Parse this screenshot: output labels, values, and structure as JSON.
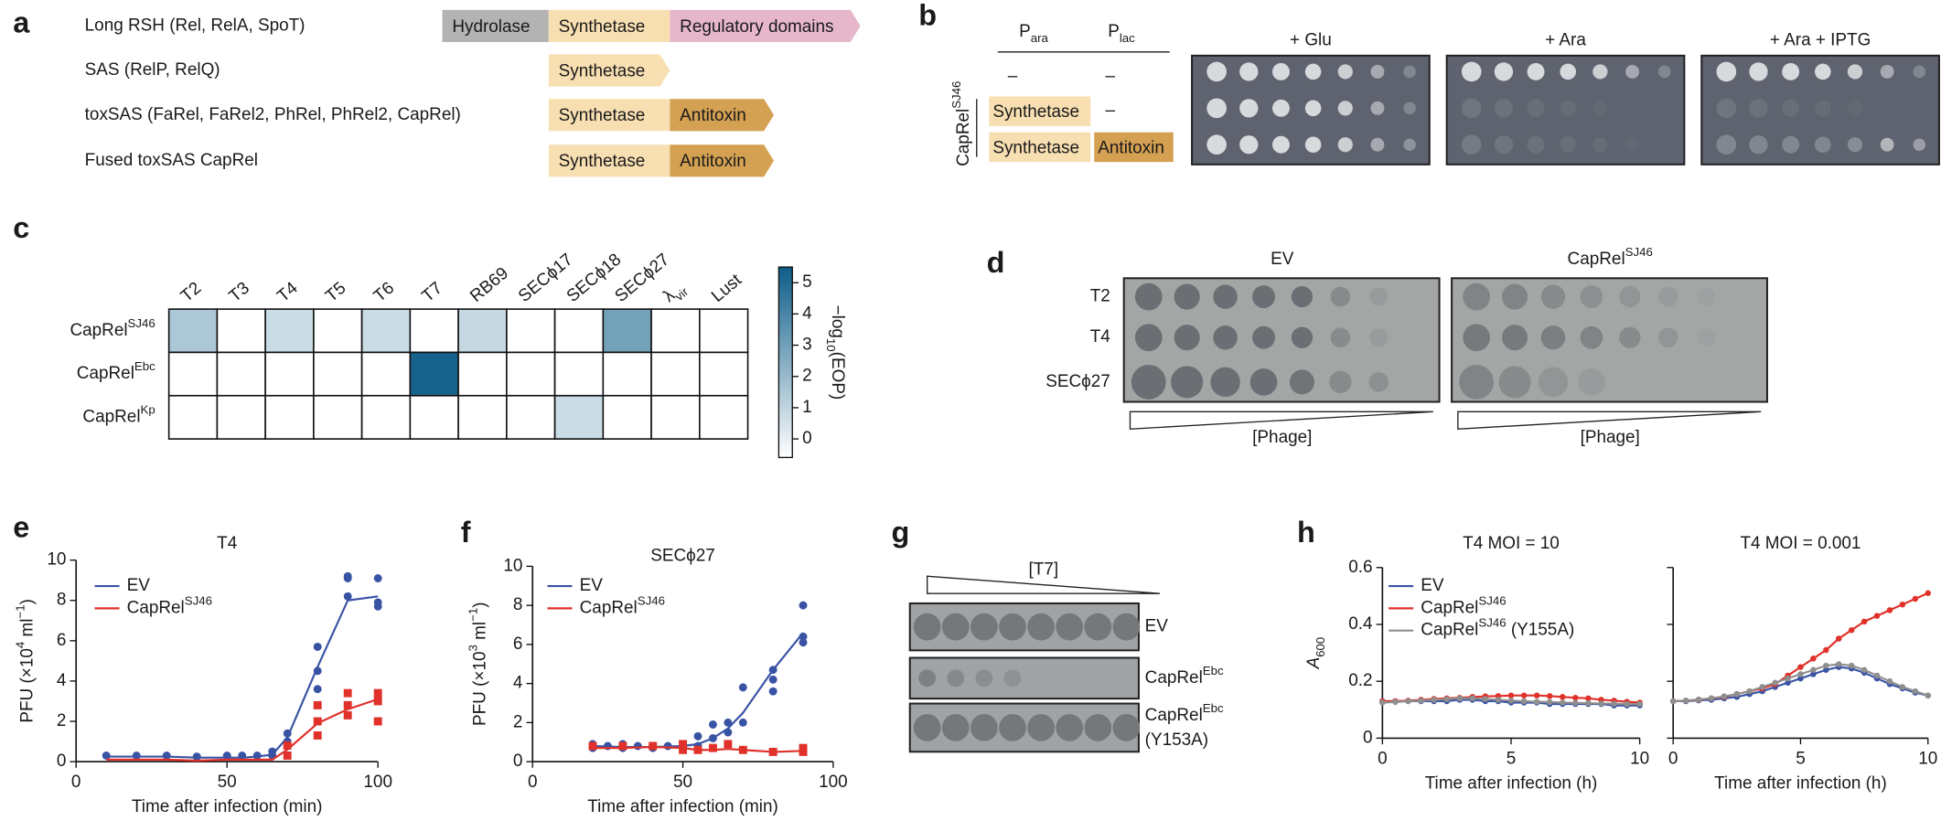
{
  "panel_labels": [
    "a",
    "b",
    "c",
    "d",
    "e",
    "f",
    "g",
    "h"
  ],
  "panel_a": {
    "rows": [
      {
        "label": "Long RSH (Rel, RelA, SpoT)",
        "domains": [
          {
            "text": "Hydrolase",
            "color": "#b3b3b3"
          },
          {
            "text": "Synthetase",
            "color": "#f8dfb2"
          },
          {
            "text": "Regulatory domains",
            "color": "#e6b6cb"
          }
        ]
      },
      {
        "label": "SAS (RelP, RelQ)",
        "domains": [
          {
            "text": "Synthetase",
            "color": "#f8dfb2"
          }
        ]
      },
      {
        "label": "toxSAS (FaRel, FaRel2, PhRel, PhRel2, CapRel)",
        "domains": [
          {
            "text": "Synthetase",
            "color": "#f8dfb2"
          },
          {
            "text": "Antitoxin",
            "color": "#d4a052"
          }
        ]
      },
      {
        "label": "Fused toxSAS CapRel",
        "domains": [
          {
            "text": "Synthetase",
            "color": "#f8dfb2"
          },
          {
            "text": "Antitoxin",
            "color": "#d4a052"
          }
        ]
      }
    ]
  },
  "panel_b": {
    "headers": [
      [
        {
          "text": "P"
        },
        {
          "text": "ara",
          "pos": "sub"
        }
      ],
      [
        {
          "text": "P"
        },
        {
          "text": "lac",
          "pos": "sub"
        }
      ]
    ],
    "strain": [
      {
        "text": "CapRel"
      },
      {
        "text": "SJ46",
        "pos": "sup"
      }
    ],
    "rows": [
      [
        "–",
        "–"
      ],
      [
        {
          "text": "Synthetase",
          "color": "#f8dfb2"
        },
        "–"
      ],
      [
        {
          "text": "Synthetase",
          "color": "#f8dfb2"
        },
        {
          "text": "Antitoxin",
          "color": "#d4a052"
        }
      ]
    ],
    "plates": [
      "+ Glu",
      "+ Ara",
      "+ Ara + IPTG"
    ]
  },
  "panel_d": {
    "plates": [
      "EV",
      [
        {
          "text": "CapRel"
        },
        {
          "text": "SJ46",
          "pos": "sup"
        }
      ]
    ],
    "rows": [
      "T2",
      "T4",
      "SECϕ27"
    ],
    "gradient_label": "[Phage]"
  },
  "panel_g": {
    "gradient_label": "[T7]",
    "rows": [
      [
        "EV"
      ],
      [
        [
          {
            "text": "CapRel"
          },
          {
            "text": "Ebc",
            "pos": "sup"
          }
        ]
      ],
      [
        [
          {
            "text": "CapRel"
          },
          {
            "text": "Ebc",
            "pos": "sup"
          }
        ],
        "(Y153A)"
      ]
    ]
  },
  "chart_data": [
    {
      "type": "heatmap",
      "x_categories": [
        "T2",
        "T3",
        "T4",
        "T5",
        "T6",
        "T7",
        "RB69",
        "SECϕ17",
        "SECϕ18",
        "SECϕ27",
        [
          {
            "text": "λ"
          },
          {
            "text": "vir",
            "pos": "sub"
          }
        ],
        "Lust"
      ],
      "y_categories": [
        [
          {
            "text": "CapRel"
          },
          {
            "text": "SJ46",
            "pos": "sup"
          }
        ],
        [
          {
            "text": "CapRel"
          },
          {
            "text": "Ebc",
            "pos": "sup"
          }
        ],
        [
          {
            "text": "CapRel"
          },
          {
            "text": "Kp",
            "pos": "sup"
          }
        ]
      ],
      "values": [
        [
          1.9,
          0,
          1.2,
          0,
          1.2,
          0,
          1.3,
          0,
          0,
          3.2,
          0,
          0
        ],
        [
          0,
          0,
          0,
          0,
          0,
          5.3,
          0,
          0,
          0,
          0,
          0,
          0
        ],
        [
          0,
          0,
          0,
          0,
          0,
          0,
          0,
          0,
          1.2,
          0,
          0,
          0
        ]
      ],
      "colormap": [
        "#ffffff",
        "#0e5d89"
      ],
      "clim": [
        0,
        5.5
      ],
      "colorbar_ticks": [
        0,
        1,
        2,
        3,
        4,
        5
      ],
      "colorbar_label": [
        {
          "text": "−log"
        },
        {
          "text": "10",
          "pos": "sub"
        },
        {
          "text": "(EOP)"
        }
      ]
    },
    {
      "type": "line",
      "title": "T4",
      "xlabel": "Time after infection (min)",
      "ylabel": [
        {
          "text": "PFU (×10"
        },
        {
          "text": "4",
          "pos": "sup"
        },
        {
          "text": " ml"
        },
        {
          "text": "−1",
          "pos": "sup"
        },
        {
          "text": ")"
        }
      ],
      "xlim": [
        0,
        100
      ],
      "ylim": [
        0,
        10
      ],
      "xticks": [
        0,
        50,
        100
      ],
      "yticks": [
        0,
        2,
        4,
        6,
        8,
        10
      ],
      "legend": true,
      "show_ytick_labels": true,
      "series": [
        {
          "name": "EV",
          "color": "#3953a4",
          "marker": "circle",
          "x": [
            10,
            20,
            30,
            40,
            50,
            55,
            60,
            65,
            70,
            80,
            90,
            100
          ],
          "values": [
            0.25,
            0.25,
            0.25,
            0.2,
            0.2,
            0.2,
            0.25,
            0.35,
            1.2,
            4.7,
            8.0,
            8.2
          ],
          "points": {
            "x": [
              10,
              20,
              30,
              40,
              50,
              55,
              60,
              65,
              65,
              70,
              70,
              80,
              80,
              80,
              90,
              90,
              90,
              100,
              100,
              100
            ],
            "y": [
              0.3,
              0.3,
              0.3,
              0.25,
              0.3,
              0.3,
              0.3,
              0.3,
              0.5,
              1.0,
              1.4,
              5.7,
              4.5,
              3.6,
              9.2,
              8.2,
              9.1,
              9.1,
              7.9,
              7.7
            ]
          }
        },
        {
          "name": [
            {
              "text": "CapRel"
            },
            {
              "text": "SJ46",
              "pos": "sup"
            }
          ],
          "color": "#e0312a",
          "marker": "square",
          "x": [
            10,
            20,
            30,
            40,
            50,
            60,
            65,
            70,
            80,
            90,
            100
          ],
          "values": [
            0.1,
            0.1,
            0.1,
            0.05,
            0.1,
            0.1,
            0.1,
            0.6,
            1.9,
            2.6,
            3.1
          ],
          "points": {
            "x": [
              70,
              70,
              80,
              80,
              80,
              90,
              90,
              90,
              100,
              100,
              100
            ],
            "y": [
              0.3,
              0.8,
              2.8,
              2.0,
              1.3,
              3.4,
              2.8,
              2.3,
              3.4,
              3.0,
              2.0
            ]
          }
        }
      ]
    },
    {
      "type": "line",
      "title": "SECϕ27",
      "xlabel": "Time after infection (min)",
      "ylabel": [
        {
          "text": "PFU (×10"
        },
        {
          "text": "3",
          "pos": "sup"
        },
        {
          "text": " ml"
        },
        {
          "text": "−1",
          "pos": "sup"
        },
        {
          "text": ")"
        }
      ],
      "xlim": [
        0,
        100
      ],
      "ylim": [
        0,
        10
      ],
      "xticks": [
        0,
        50,
        100
      ],
      "yticks": [
        0,
        2,
        4,
        6,
        8,
        10
      ],
      "legend": true,
      "show_ytick_labels": true,
      "series": [
        {
          "name": "EV",
          "color": "#3953a4",
          "marker": "circle",
          "x": [
            20,
            30,
            40,
            50,
            55,
            60,
            65,
            70,
            80,
            90
          ],
          "values": [
            0.8,
            0.75,
            0.75,
            0.8,
            0.9,
            1.2,
            1.7,
            2.5,
            4.7,
            6.6
          ],
          "points": {
            "x": [
              20,
              20,
              25,
              30,
              30,
              35,
              40,
              40,
              45,
              50,
              50,
              55,
              55,
              60,
              60,
              65,
              65,
              70,
              70,
              80,
              80,
              80,
              90,
              90,
              90
            ],
            "y": [
              0.9,
              0.7,
              0.8,
              0.9,
              0.7,
              0.8,
              0.8,
              0.7,
              0.8,
              0.9,
              0.7,
              1.3,
              0.8,
              1.9,
              1.2,
              2.0,
              1.5,
              3.8,
              2.0,
              4.7,
              4.2,
              3.6,
              8.0,
              6.4,
              6.1
            ]
          }
        },
        {
          "name": [
            {
              "text": "CapRel"
            },
            {
              "text": "SJ46",
              "pos": "sup"
            }
          ],
          "color": "#e0312a",
          "marker": "square",
          "x": [
            20,
            30,
            40,
            50,
            55,
            60,
            65,
            70,
            80,
            90
          ],
          "values": [
            0.7,
            0.7,
            0.75,
            0.7,
            0.6,
            0.6,
            0.65,
            0.6,
            0.5,
            0.55
          ],
          "points": {
            "x": [
              20,
              30,
              40,
              50,
              50,
              55,
              60,
              65,
              70,
              80,
              90,
              90
            ],
            "y": [
              0.8,
              0.8,
              0.8,
              0.9,
              0.6,
              0.6,
              0.7,
              0.9,
              0.6,
              0.5,
              0.7,
              0.5
            ]
          }
        }
      ]
    },
    {
      "type": "line",
      "title": "T4 MOI = 10",
      "xlabel": "Time after infection (h)",
      "ylabel": [
        {
          "text": "A",
          "pos": "italic"
        },
        {
          "text": "600",
          "pos": "sub"
        }
      ],
      "xlim": [
        0,
        10
      ],
      "ylim": [
        0,
        0.6
      ],
      "xticks": [
        0,
        5,
        10
      ],
      "yticks": [
        0,
        0.2,
        0.4,
        0.6
      ],
      "legend": true,
      "show_ytick_labels": true,
      "series": [
        {
          "name": "EV",
          "color": "#3953a4",
          "marker": "circle",
          "x": [
            0,
            0.5,
            1,
            1.5,
            2,
            2.5,
            3,
            3.5,
            4,
            4.5,
            5,
            5.5,
            6,
            6.5,
            7,
            7.5,
            8,
            8.5,
            9,
            9.5,
            10
          ],
          "values": [
            0.13,
            0.13,
            0.13,
            0.13,
            0.13,
            0.13,
            0.135,
            0.135,
            0.13,
            0.13,
            0.125,
            0.125,
            0.125,
            0.12,
            0.12,
            0.12,
            0.12,
            0.12,
            0.115,
            0.115,
            0.115
          ]
        },
        {
          "name": [
            {
              "text": "CapRel"
            },
            {
              "text": "SJ46",
              "pos": "sup"
            }
          ],
          "color": "#e0312a",
          "marker": "circle",
          "x": [
            0,
            0.5,
            1,
            1.5,
            2,
            2.5,
            3,
            3.5,
            4,
            4.5,
            5,
            5.5,
            6,
            6.5,
            7,
            7.5,
            8,
            8.5,
            9,
            9.5,
            10
          ],
          "values": [
            0.13,
            0.13,
            0.132,
            0.135,
            0.138,
            0.14,
            0.142,
            0.145,
            0.147,
            0.148,
            0.15,
            0.15,
            0.15,
            0.148,
            0.145,
            0.142,
            0.14,
            0.135,
            0.132,
            0.128,
            0.125
          ]
        },
        {
          "name": [
            {
              "text": "CapRel"
            },
            {
              "text": "SJ46",
              "pos": "sup"
            },
            {
              "text": " (Y155A)"
            }
          ],
          "color": "#8f8f8f",
          "marker": "circle",
          "x": [
            0,
            0.5,
            1,
            1.5,
            2,
            2.5,
            3,
            3.5,
            4,
            4.5,
            5,
            5.5,
            6,
            6.5,
            7,
            7.5,
            8,
            8.5,
            9,
            9.5,
            10
          ],
          "values": [
            0.125,
            0.127,
            0.13,
            0.132,
            0.135,
            0.137,
            0.14,
            0.14,
            0.138,
            0.135,
            0.132,
            0.13,
            0.128,
            0.127,
            0.125,
            0.124,
            0.123,
            0.122,
            0.121,
            0.12,
            0.12
          ]
        }
      ]
    },
    {
      "type": "line",
      "title": "T4 MOI = 0.001",
      "xlabel": "Time after infection (h)",
      "xlim": [
        0,
        10
      ],
      "ylim": [
        0,
        0.6
      ],
      "xticks": [
        0,
        5,
        10
      ],
      "yticks": [
        0,
        0.2,
        0.4,
        0.6
      ],
      "legend": false,
      "show_ytick_labels": false,
      "series": [
        {
          "color": "#3953a4",
          "marker": "circle",
          "x": [
            0,
            0.5,
            1,
            1.5,
            2,
            2.5,
            3,
            3.5,
            4,
            4.5,
            5,
            5.5,
            6,
            6.5,
            7,
            7.5,
            8,
            8.5,
            9,
            9.5,
            10
          ],
          "values": [
            0.13,
            0.13,
            0.133,
            0.135,
            0.14,
            0.145,
            0.155,
            0.165,
            0.18,
            0.195,
            0.21,
            0.225,
            0.24,
            0.25,
            0.245,
            0.23,
            0.21,
            0.19,
            0.175,
            0.16,
            0.15
          ]
        },
        {
          "color": "#e0312a",
          "marker": "circle",
          "x": [
            0,
            0.5,
            1,
            1.5,
            2,
            2.5,
            3,
            3.5,
            4,
            4.5,
            5,
            5.5,
            6,
            6.5,
            7,
            7.5,
            8,
            8.5,
            9,
            9.5,
            10
          ],
          "values": [
            0.13,
            0.132,
            0.135,
            0.14,
            0.145,
            0.155,
            0.165,
            0.175,
            0.19,
            0.22,
            0.25,
            0.28,
            0.31,
            0.35,
            0.38,
            0.41,
            0.43,
            0.45,
            0.47,
            0.49,
            0.51
          ]
        },
        {
          "color": "#8f8f8f",
          "marker": "circle",
          "x": [
            0,
            0.5,
            1,
            1.5,
            2,
            2.5,
            3,
            3.5,
            4,
            4.5,
            5,
            5.5,
            6,
            6.5,
            7,
            7.5,
            8,
            8.5,
            9,
            9.5,
            10
          ],
          "values": [
            0.13,
            0.132,
            0.136,
            0.14,
            0.147,
            0.155,
            0.165,
            0.18,
            0.195,
            0.21,
            0.225,
            0.24,
            0.255,
            0.26,
            0.255,
            0.24,
            0.22,
            0.2,
            0.18,
            0.165,
            0.15
          ]
        }
      ]
    }
  ]
}
